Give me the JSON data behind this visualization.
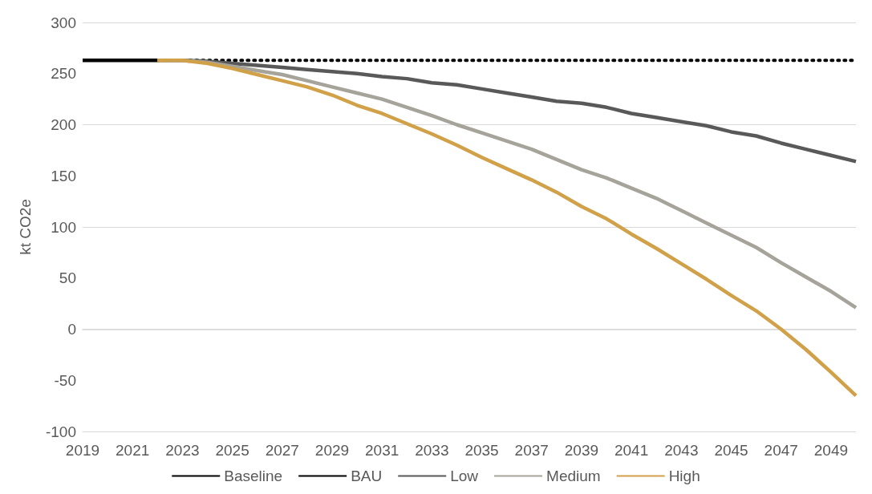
{
  "chart_data": {
    "type": "line",
    "ylabel": "kt CO2e",
    "categories": [
      "2019",
      null,
      "2021",
      null,
      "2023",
      null,
      "2025",
      null,
      "2027",
      null,
      "2029",
      null,
      "2031",
      null,
      "2033",
      null,
      "2035",
      null,
      "2037",
      null,
      "2039",
      null,
      "2041",
      null,
      "2043",
      null,
      "2045",
      null,
      "2047",
      null,
      "2049",
      null
    ],
    "ylim": [
      -100,
      300
    ],
    "yticks": [
      -100,
      -50,
      0,
      50,
      100,
      150,
      200,
      250,
      300
    ],
    "grid": "y",
    "legend": "bottom",
    "series": [
      {
        "name": "Baseline",
        "color": "#000000",
        "line_style": "solid",
        "values": [
          263,
          263,
          263,
          263,
          null,
          null,
          null,
          null,
          null,
          null,
          null,
          null,
          null,
          null,
          null,
          null,
          null,
          null,
          null,
          null,
          null,
          null,
          null,
          null,
          null,
          null,
          null,
          null,
          null,
          null,
          null,
          null
        ]
      },
      {
        "name": "BAU",
        "color": "#000000",
        "line_style": "dotted",
        "values": [
          null,
          null,
          null,
          263,
          263,
          263,
          263,
          263,
          263,
          263,
          263,
          263,
          263,
          263,
          263,
          263,
          263,
          263,
          263,
          263,
          263,
          263,
          263,
          263,
          263,
          263,
          263,
          263,
          263,
          263,
          263,
          263
        ]
      },
      {
        "name": "Low",
        "color": "#595959",
        "line_style": "solid",
        "values": [
          null,
          null,
          null,
          263,
          263,
          262,
          260,
          258,
          256,
          254,
          252,
          250,
          247,
          245,
          241,
          239,
          235,
          231,
          227,
          223,
          221,
          217,
          211,
          207,
          203,
          199,
          193,
          189,
          182,
          176,
          170,
          164
        ]
      },
      {
        "name": "Medium",
        "color": "#a5a39a",
        "line_style": "solid",
        "values": [
          null,
          null,
          null,
          263,
          263,
          261,
          257,
          253,
          249,
          243,
          237,
          231,
          225,
          217,
          209,
          200,
          192,
          184,
          176,
          166,
          156,
          148,
          138,
          128,
          116,
          104,
          92,
          80,
          65,
          51,
          37,
          21
        ]
      },
      {
        "name": "High",
        "color": "#d1a14a",
        "line_style": "solid",
        "values": [
          null,
          null,
          null,
          263,
          263,
          260,
          255,
          249,
          243,
          237,
          229,
          219,
          211,
          201,
          191,
          180,
          168,
          157,
          146,
          134,
          120,
          108,
          93,
          79,
          64,
          49,
          33,
          18,
          0,
          -20,
          -42,
          -65
        ]
      }
    ]
  }
}
